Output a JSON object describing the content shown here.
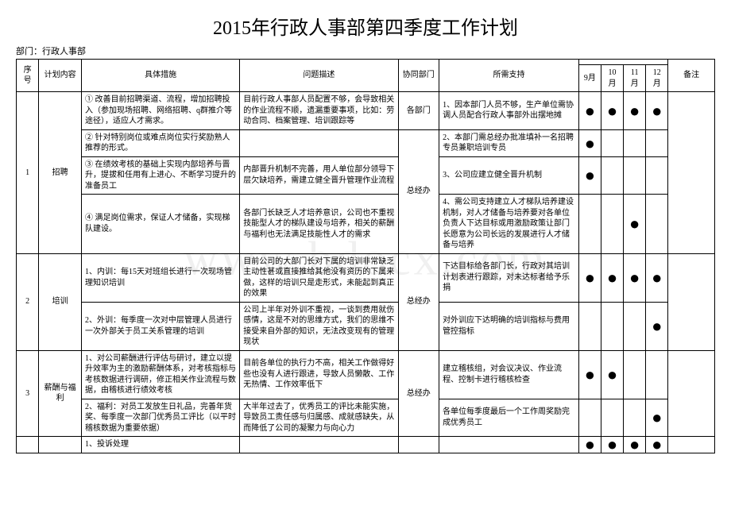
{
  "title": "2015年行政人事部第四季度工作计划",
  "dept_label": "部门：行政人事部",
  "headers": {
    "seq": "序号",
    "plan": "计划内容",
    "measure": "具体措施",
    "problem": "问题描述",
    "coop": "协同部门",
    "support": "所需支持",
    "months": [
      "9月",
      "10月",
      "11月",
      "12月"
    ],
    "note": "备注"
  },
  "rows": [
    {
      "seq": "1",
      "plan": "招聘",
      "coop_groups": [
        {
          "coop": "各部门",
          "items": [
            {
              "measure": "① 改善目前招聘渠道、流程，增加招聘投入（参加现场招聘、网络招聘、q群推介等途径），适应人才需求。",
              "problem": "目前行政人事部人员配置不够，会导致相关的作业流程不顺，遗漏重要事项，比如：劳动合同、档案管理、培训跟踪等",
              "support": "1、因本部门人员不够，生产单位需协调人员配合行政人事部外出摆地摊",
              "dots": [
                true,
                true,
                true,
                true
              ]
            }
          ]
        },
        {
          "coop": "总经办",
          "items": [
            {
              "measure": "② 针对特别岗位或难点岗位实行奖励熟人推荐的形式。",
              "problem": "",
              "support": "2、本部门需总经办批准填补一名招聘专员兼职培训专员",
              "dots": [
                true,
                false,
                false,
                false
              ]
            },
            {
              "measure": "③ 在绩效考核的基础上实现内部培养与晋升，提拔和任用有上进心、不断学习提升的准备员工",
              "problem": "内部晋升机制不完善，用人单位部分领导下层欠缺培养，需建立健全晋升管理作业流程",
              "support": "3、公司应建立健全晋升机制",
              "dots": [
                true,
                false,
                false,
                false
              ]
            },
            {
              "measure": "④ 满足岗位需求，保证人才储备，实现梯队建设。",
              "problem": "各部门长缺乏人才培养意识，公司也不重视技能型人才的梯队建设与培养，相关的薪酬与福利也无法满足技能性人才的需求",
              "support": "4、需公司支持建立人才梯队培养建设机制，对人才储备与培养要对各单位负责人下达目标或用激励政策让部门长愿意为公司长远的发展进行人才储备与培养",
              "dots": [
                false,
                false,
                true,
                false
              ]
            }
          ]
        }
      ]
    },
    {
      "seq": "2",
      "plan": "培训",
      "coop_groups": [
        {
          "coop": "总经办",
          "items": [
            {
              "measure": "1、内训：每15天对班组长进行一次现场管理知识培训",
              "problem": "目前公司的大部门长对下属的培训非常缺乏主动性甚或直接推给其他没有资历的下属来做，这样的培训只是走形式，未能起到真正的效果",
              "support": "下达目标给各部门长，行政对其培训计划表进行跟踪，对未达标者给予乐捐",
              "dots": [
                true,
                true,
                true,
                true
              ]
            },
            {
              "measure": "2、外训：每季度一次对中层管理人员进行一次外部关于员工关系管理的培训",
              "problem": "公司上半年对外训不重视，一谈到费用就伤感情，这是不对的思维方式，我们的思维不接受来自外部的知识，无法改变现有的管理现状",
              "support": "对外训应下达明确的培训指标与费用管控指标",
              "dots": [
                false,
                false,
                false,
                true
              ]
            }
          ]
        }
      ]
    },
    {
      "seq": "3",
      "plan": "薪酬与福利",
      "coop_groups": [
        {
          "coop": "总经办",
          "items": [
            {
              "measure": "1、对公司薪酬进行评估与研讨，建立以提升效率为主的激励薪酬体系，对考核指标与考核数据进行调研，修正相关作业流程与数据，由稽核进行绩效考核",
              "problem": "目前各单位的执行力不高，相关工作做得好些也没有人进行跟进，导致人员懒散、工作无热情、工作效率低下",
              "support": "建立稽核组，对会议决议、作业流程、控制卡进行稽核检查",
              "dots": [
                true,
                true,
                false,
                false
              ]
            },
            {
              "measure": "2、福利：对员工发放生日礼品，完善年货奖、每季度一次部门优秀员工评比（以平时稽核数据为重要依据）",
              "problem": "大半年过去了，优秀员工的评比未能实施，导致员工责任感与归属感、成就感缺失，从而降低了公司的凝聚力与向心力",
              "support": "各单位每季度最后一个工作周奖励完成优秀员工",
              "dots": [
                false,
                false,
                false,
                true
              ]
            }
          ]
        }
      ]
    }
  ],
  "lastrow": {
    "measure": "1、投诉处理",
    "dots": [
      true,
      true,
      true,
      true
    ]
  },
  "watermark": "www.bdocx.com"
}
